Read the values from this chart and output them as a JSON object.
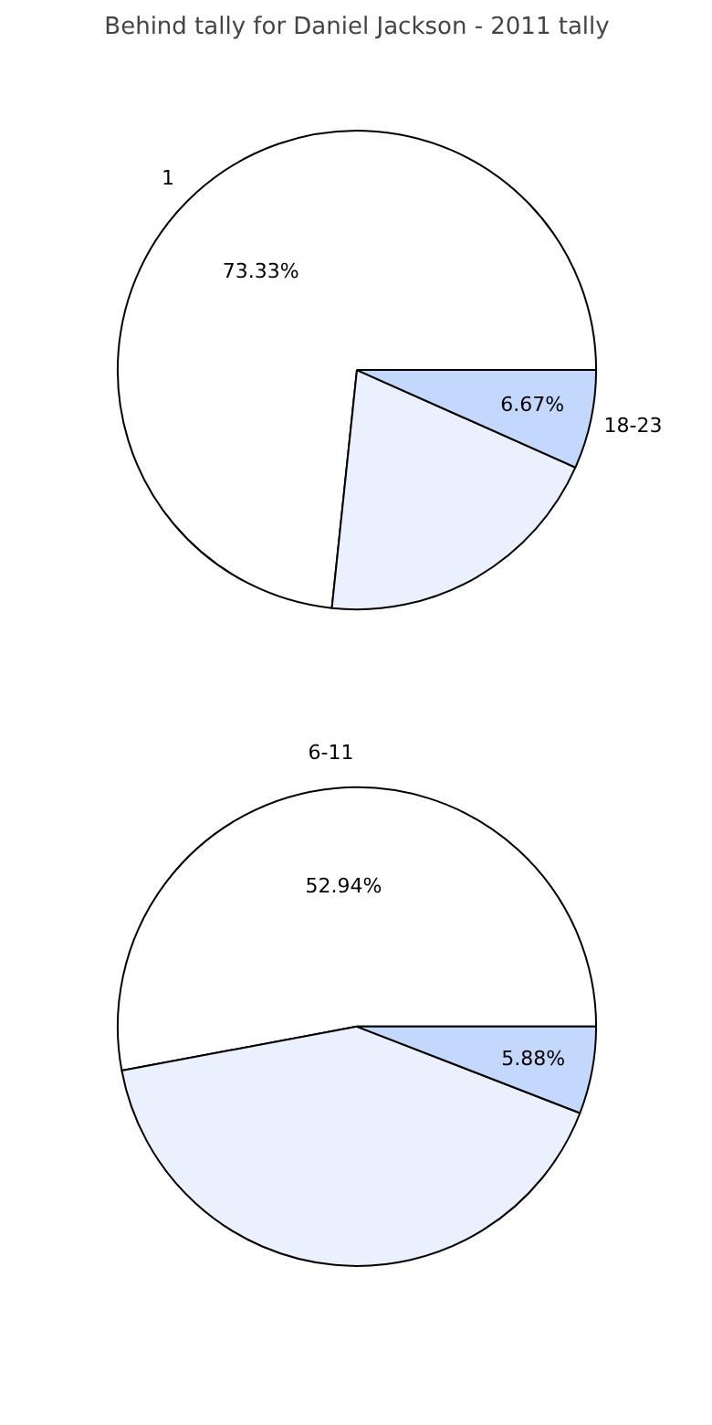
{
  "chart_data": [
    {
      "type": "pie",
      "title": "Behind tally for Daniel Jackson - 2011 tally",
      "categories": [
        "1",
        null,
        "18-23"
      ],
      "values": [
        73.33,
        20,
        6.67
      ],
      "colors": [
        "#ffffff",
        "#eaf0fe",
        "#c4d8fe"
      ],
      "value_labels": [
        "73.33%",
        null,
        "6.67%"
      ]
    },
    {
      "type": "pie",
      "categories": [
        "6-11",
        null,
        null
      ],
      "values": [
        52.94,
        41.18,
        5.88
      ],
      "colors": [
        "#ffffff",
        "#eaf0fe",
        "#c4d8fe"
      ],
      "value_labels": [
        "52.94%",
        null,
        "5.88%"
      ]
    }
  ]
}
